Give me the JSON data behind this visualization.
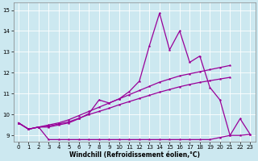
{
  "xlabel": "Windchill (Refroidissement éolien,°C)",
  "color": "#990099",
  "bg_color": "#cce8f0",
  "yticks": [
    9,
    10,
    11,
    12,
    13,
    14,
    15
  ],
  "xticks": [
    0,
    1,
    2,
    3,
    4,
    5,
    6,
    7,
    8,
    9,
    10,
    11,
    12,
    13,
    14,
    15,
    16,
    17,
    18,
    19,
    20,
    21,
    22,
    23
  ],
  "line_jagged": [
    9.6,
    9.3,
    9.4,
    9.4,
    9.5,
    9.6,
    9.8,
    10.05,
    10.7,
    10.55,
    10.75,
    11.1,
    11.6,
    13.3,
    14.85,
    13.1,
    14.0,
    12.5,
    12.8,
    11.3,
    10.7,
    9.0,
    9.8,
    9.05
  ],
  "line_trend_top": [
    9.6,
    9.3,
    9.4,
    9.5,
    9.6,
    9.75,
    9.95,
    10.15,
    10.35,
    10.55,
    10.75,
    10.95,
    11.15,
    11.35,
    11.55,
    11.7,
    11.85,
    11.95,
    12.05,
    12.15,
    12.25,
    12.35,
    null,
    null
  ],
  "line_trend_mid": [
    9.6,
    9.3,
    9.4,
    9.45,
    9.55,
    9.65,
    9.82,
    10.0,
    10.15,
    10.3,
    10.47,
    10.62,
    10.77,
    10.92,
    11.07,
    11.2,
    11.33,
    11.44,
    11.54,
    11.62,
    11.7,
    11.78,
    null,
    null
  ],
  "line_flat": [
    9.6,
    9.3,
    9.4,
    8.8,
    8.8,
    8.8,
    8.8,
    8.8,
    8.8,
    8.8,
    8.8,
    8.8,
    8.8,
    8.8,
    8.8,
    8.8,
    8.8,
    8.8,
    8.8,
    8.8,
    8.9,
    9.0,
    9.0,
    9.05
  ]
}
